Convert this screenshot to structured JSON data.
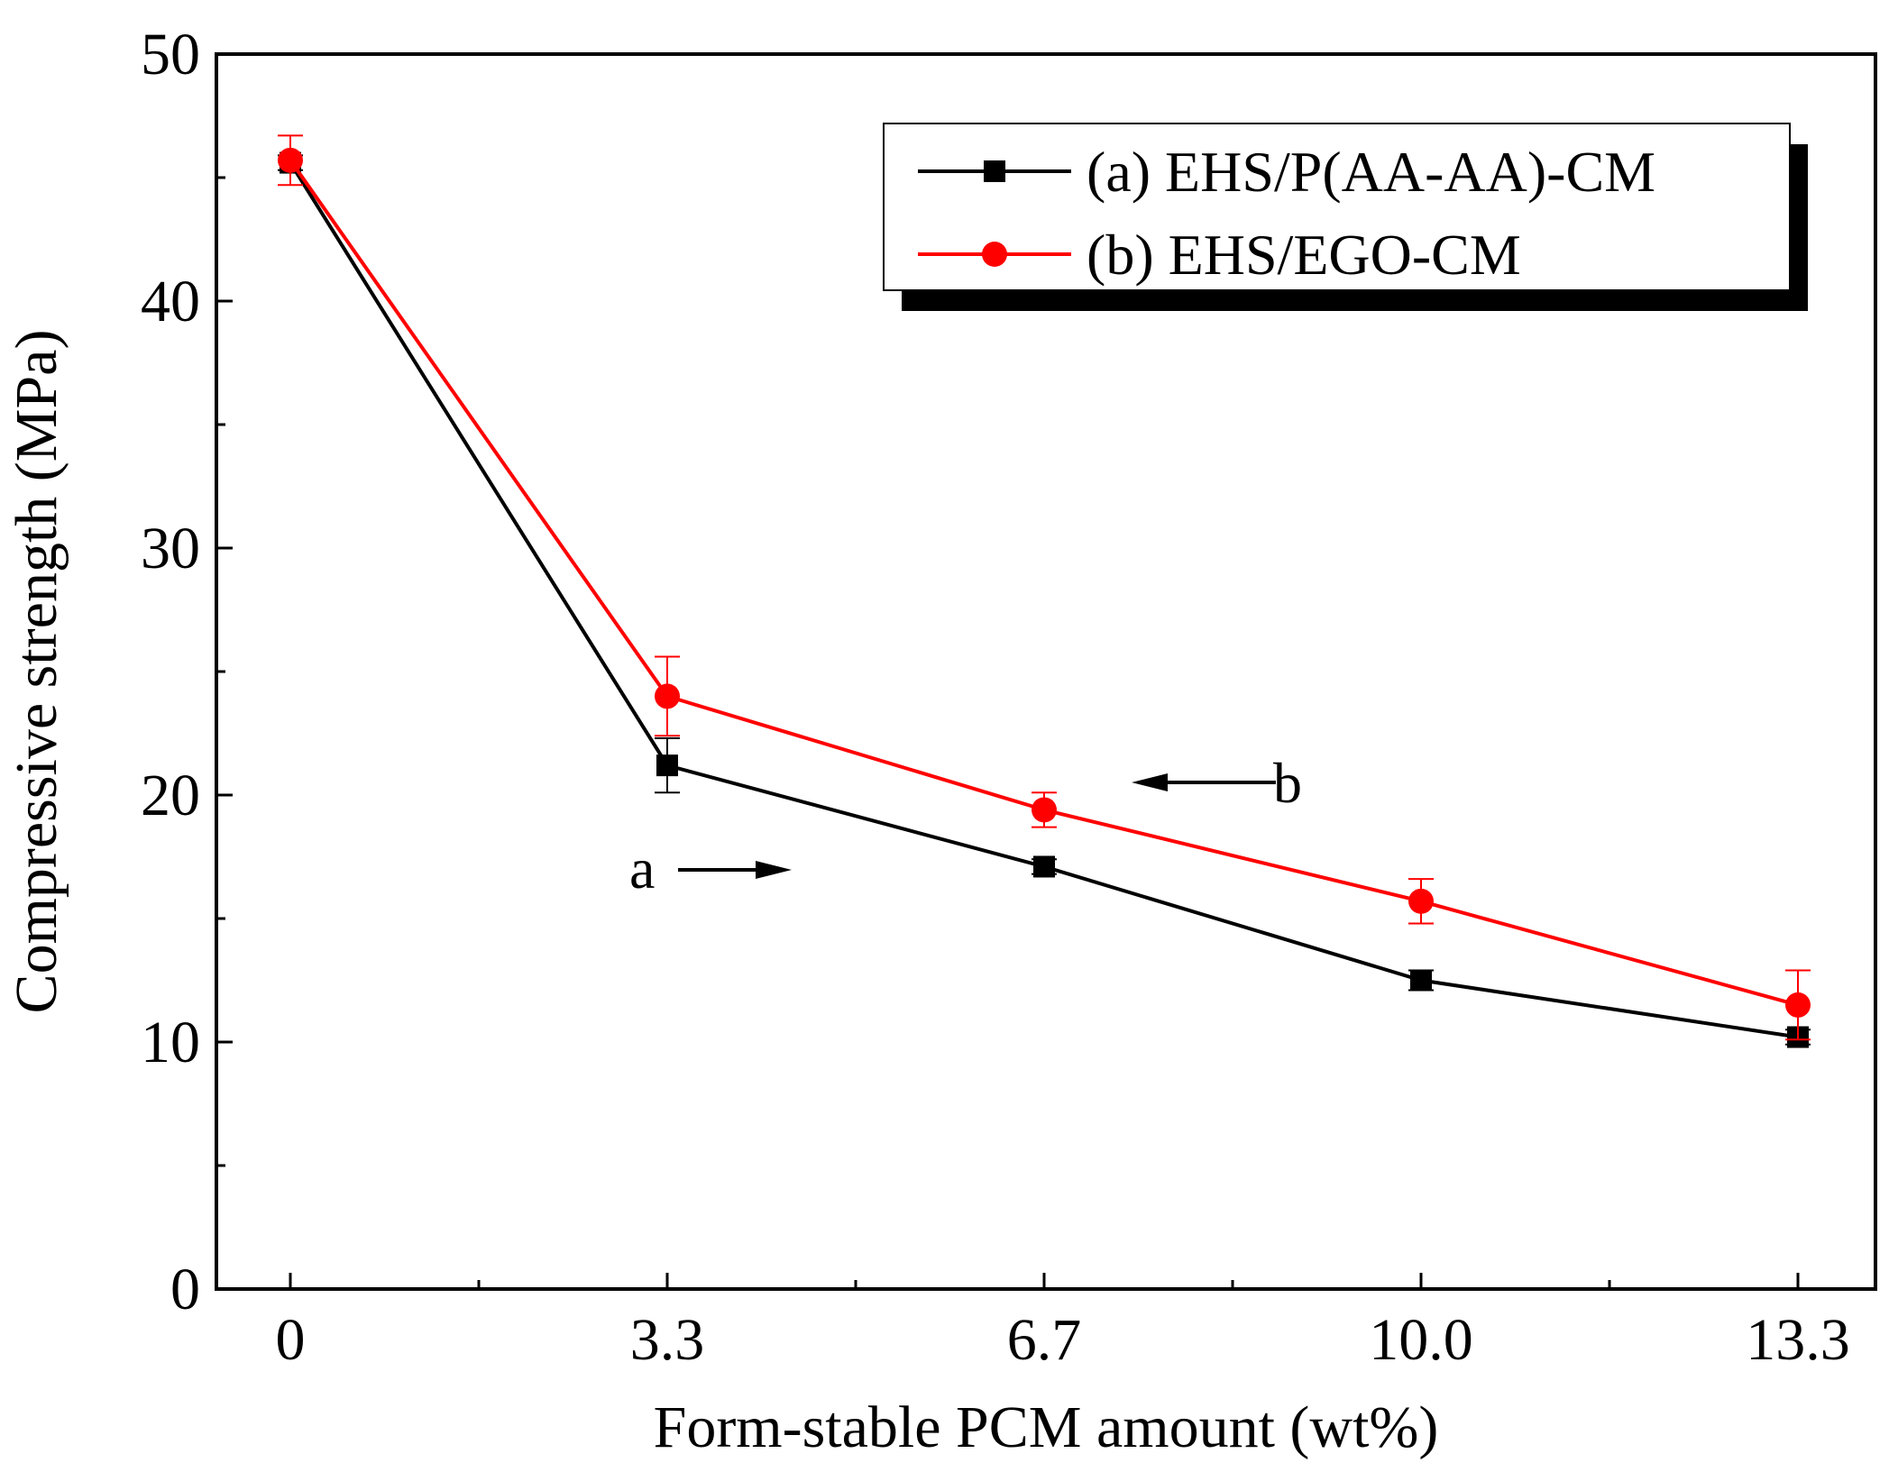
{
  "chart_data": {
    "type": "line",
    "title": "",
    "xlabel": "Form-stable PCM amount (wt%)",
    "ylabel": "Compressive strength (MPa)",
    "x": [
      0,
      3.3,
      6.7,
      10.0,
      13.3
    ],
    "x_tick_labels": [
      "0",
      "3.3",
      "6.7",
      "10.0",
      "13.3"
    ],
    "ylim": [
      0,
      50
    ],
    "y_ticks": [
      0,
      10,
      20,
      30,
      40,
      50
    ],
    "y_tick_labels": [
      "0",
      "10",
      "20",
      "30",
      "40",
      "50"
    ],
    "grid": false,
    "legend_position": "top-right",
    "series": [
      {
        "name": "(a) EHS/P(AA-AA)-CM",
        "color": "#000000",
        "marker": "square",
        "values": [
          45.6,
          21.2,
          17.1,
          12.5,
          10.2
        ],
        "errors": [
          0.3,
          1.1,
          0.3,
          0.4,
          0.3
        ]
      },
      {
        "name": "(b) EHS/EGO-CM",
        "color": "#ff0000",
        "marker": "circle",
        "values": [
          45.7,
          24.0,
          19.4,
          15.7,
          11.5
        ],
        "errors": [
          1.0,
          1.6,
          0.7,
          0.9,
          1.4
        ]
      }
    ],
    "annotations": [
      {
        "label": "a",
        "arrow": "right"
      },
      {
        "label": "b",
        "arrow": "left"
      }
    ]
  }
}
